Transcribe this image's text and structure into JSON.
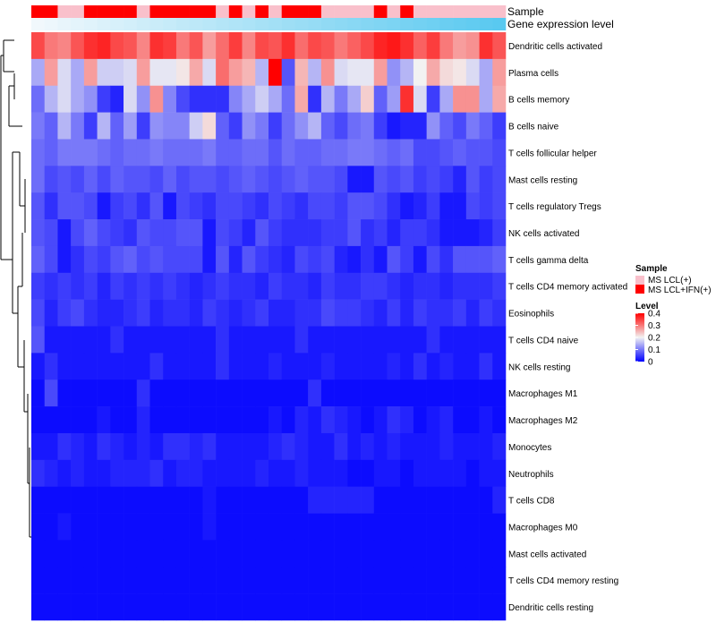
{
  "chart_data": {
    "type": "heatmap",
    "annotation_tracks": [
      {
        "name": "Sample"
      },
      {
        "name": "Gene expression level"
      }
    ],
    "sample_groups": [
      "MS LCL(+)",
      "MS LCL+IFN(+)"
    ],
    "sample_colors": {
      "MS LCL(+)": "#F9C0CB",
      "MS LCL+IFN(+)": "#FF0000"
    },
    "sample_annotation": [
      1,
      1,
      0,
      0,
      1,
      1,
      1,
      1,
      0,
      1,
      1,
      1,
      1,
      1,
      0,
      1,
      0,
      1,
      0,
      1,
      1,
      1,
      0,
      0,
      0,
      0,
      1,
      0,
      1,
      0,
      0,
      0,
      0,
      0,
      0,
      0
    ],
    "expression_gradient": [
      "#F1F8FC",
      "#59C9F0"
    ],
    "rows": [
      "Dendritic cells activated",
      "Plasma cells",
      "B cells memory",
      "B cells naive",
      "T cells follicular helper",
      "Mast cells resting",
      "T cells regulatory  Tregs",
      "NK cells activated",
      "T cells gamma delta",
      "T cells CD4 memory activated",
      "Eosinophils",
      "T cells CD4 naive",
      "NK cells resting",
      "Macrophages M1",
      "Macrophages M2",
      "Monocytes",
      "Neutrophils",
      "T cells CD8",
      "Macrophages M0",
      "Mast cells activated",
      "T cells CD4 memory resting",
      "Dendritic cells resting"
    ],
    "values": [
      [
        0.34,
        0.3,
        0.29,
        0.33,
        0.36,
        0.37,
        0.34,
        0.33,
        0.29,
        0.36,
        0.35,
        0.3,
        0.33,
        0.27,
        0.31,
        0.35,
        0.29,
        0.34,
        0.33,
        0.36,
        0.31,
        0.34,
        0.33,
        0.3,
        0.32,
        0.34,
        0.37,
        0.38,
        0.36,
        0.32,
        0.35,
        0.3,
        0.27,
        0.28,
        0.36,
        0.33
      ],
      [
        0.14,
        0.27,
        0.18,
        0.14,
        0.27,
        0.17,
        0.17,
        0.18,
        0.27,
        0.19,
        0.19,
        0.21,
        0.26,
        0.18,
        0.31,
        0.27,
        0.25,
        0.15,
        0.4,
        0.07,
        0.25,
        0.15,
        0.28,
        0.18,
        0.19,
        0.19,
        0.27,
        0.12,
        0.15,
        0.2,
        0.26,
        0.22,
        0.21,
        0.18,
        0.14,
        0.27
      ],
      [
        0.09,
        0.15,
        0.18,
        0.14,
        0.12,
        0.05,
        0.03,
        0.18,
        0.12,
        0.28,
        0.11,
        0.06,
        0.04,
        0.04,
        0.04,
        0.11,
        0.14,
        0.17,
        0.14,
        0.09,
        0.26,
        0.04,
        0.15,
        0.1,
        0.14,
        0.23,
        0.08,
        0.13,
        0.36,
        0.18,
        0.05,
        0.14,
        0.28,
        0.28,
        0.14,
        0.26
      ],
      [
        0.1,
        0.08,
        0.15,
        0.1,
        0.05,
        0.15,
        0.08,
        0.13,
        0.05,
        0.12,
        0.11,
        0.11,
        0.17,
        0.22,
        0.08,
        0.05,
        0.12,
        0.1,
        0.05,
        0.09,
        0.12,
        0.15,
        0.08,
        0.06,
        0.09,
        0.1,
        0.05,
        0.02,
        0.03,
        0.03,
        0.12,
        0.08,
        0.06,
        0.1,
        0.08,
        0.05
      ],
      [
        0.09,
        0.08,
        0.1,
        0.1,
        0.1,
        0.09,
        0.08,
        0.09,
        0.09,
        0.1,
        0.09,
        0.09,
        0.09,
        0.1,
        0.08,
        0.08,
        0.09,
        0.09,
        0.07,
        0.09,
        0.08,
        0.08,
        0.09,
        0.09,
        0.1,
        0.1,
        0.09,
        0.08,
        0.09,
        0.06,
        0.06,
        0.07,
        0.08,
        0.07,
        0.07,
        0.06
      ],
      [
        0.09,
        0.06,
        0.07,
        0.06,
        0.08,
        0.06,
        0.08,
        0.07,
        0.07,
        0.06,
        0.08,
        0.06,
        0.07,
        0.07,
        0.06,
        0.07,
        0.08,
        0.07,
        0.06,
        0.07,
        0.08,
        0.07,
        0.07,
        0.06,
        0.02,
        0.02,
        0.07,
        0.06,
        0.07,
        0.05,
        0.06,
        0.05,
        0.03,
        0.07,
        0.05,
        0.06
      ],
      [
        0.07,
        0.04,
        0.07,
        0.07,
        0.06,
        0.02,
        0.05,
        0.06,
        0.04,
        0.07,
        0.02,
        0.06,
        0.05,
        0.04,
        0.06,
        0.06,
        0.05,
        0.04,
        0.06,
        0.05,
        0.04,
        0.06,
        0.06,
        0.05,
        0.07,
        0.07,
        0.06,
        0.04,
        0.02,
        0.03,
        0.05,
        0.02,
        0.02,
        0.06,
        0.05,
        0.06
      ],
      [
        0.07,
        0.06,
        0.02,
        0.06,
        0.08,
        0.06,
        0.05,
        0.04,
        0.07,
        0.06,
        0.06,
        0.07,
        0.07,
        0.02,
        0.06,
        0.05,
        0.03,
        0.07,
        0.05,
        0.04,
        0.04,
        0.04,
        0.05,
        0.05,
        0.07,
        0.04,
        0.05,
        0.03,
        0.05,
        0.05,
        0.04,
        0.02,
        0.02,
        0.02,
        0.03,
        0.05
      ],
      [
        0.08,
        0.06,
        0.02,
        0.04,
        0.06,
        0.05,
        0.07,
        0.08,
        0.06,
        0.07,
        0.06,
        0.06,
        0.06,
        0.02,
        0.07,
        0.03,
        0.07,
        0.05,
        0.04,
        0.03,
        0.06,
        0.05,
        0.06,
        0.03,
        0.02,
        0.04,
        0.02,
        0.07,
        0.05,
        0.02,
        0.06,
        0.04,
        0.07,
        0.07,
        0.07,
        0.08
      ],
      [
        0.05,
        0.04,
        0.05,
        0.04,
        0.05,
        0.03,
        0.05,
        0.04,
        0.05,
        0.04,
        0.05,
        0.04,
        0.03,
        0.04,
        0.05,
        0.04,
        0.04,
        0.03,
        0.05,
        0.04,
        0.04,
        0.03,
        0.05,
        0.04,
        0.04,
        0.05,
        0.05,
        0.04,
        0.03,
        0.04,
        0.04,
        0.03,
        0.04,
        0.04,
        0.04,
        0.05
      ],
      [
        0.06,
        0.03,
        0.05,
        0.06,
        0.04,
        0.03,
        0.03,
        0.04,
        0.05,
        0.03,
        0.04,
        0.04,
        0.03,
        0.05,
        0.04,
        0.03,
        0.04,
        0.05,
        0.03,
        0.03,
        0.04,
        0.04,
        0.06,
        0.05,
        0.05,
        0.04,
        0.03,
        0.05,
        0.03,
        0.05,
        0.04,
        0.04,
        0.05,
        0.03,
        0.05,
        0.04
      ],
      [
        0.07,
        0.02,
        0.02,
        0.02,
        0.02,
        0.02,
        0.04,
        0.02,
        0.02,
        0.02,
        0.02,
        0.02,
        0.02,
        0.02,
        0.04,
        0.02,
        0.02,
        0.02,
        0.02,
        0.02,
        0.04,
        0.02,
        0.02,
        0.02,
        0.02,
        0.02,
        0.02,
        0.02,
        0.02,
        0.02,
        0.04,
        0.02,
        0.02,
        0.02,
        0.02,
        0.02
      ],
      [
        0.02,
        0.04,
        0.02,
        0.02,
        0.02,
        0.02,
        0.02,
        0.02,
        0.02,
        0.04,
        0.02,
        0.02,
        0.02,
        0.02,
        0.04,
        0.02,
        0.02,
        0.02,
        0.03,
        0.02,
        0.02,
        0.02,
        0.03,
        0.02,
        0.02,
        0.02,
        0.02,
        0.03,
        0.02,
        0.04,
        0.02,
        0.03,
        0.02,
        0.02,
        0.04,
        0.02
      ],
      [
        0.01,
        0.06,
        0.01,
        0.01,
        0.01,
        0.01,
        0.01,
        0.01,
        0.04,
        0.01,
        0.01,
        0.01,
        0.01,
        0.01,
        0.01,
        0.01,
        0.01,
        0.01,
        0.01,
        0.01,
        0.01,
        0.04,
        0.01,
        0.01,
        0.01,
        0.01,
        0.01,
        0.01,
        0.01,
        0.01,
        0.01,
        0.01,
        0.01,
        0.01,
        0.01,
        0.01
      ],
      [
        0.01,
        0.01,
        0.01,
        0.01,
        0.01,
        0.02,
        0.01,
        0.01,
        0.03,
        0.01,
        0.01,
        0.01,
        0.01,
        0.01,
        0.01,
        0.01,
        0.01,
        0.01,
        0.02,
        0.01,
        0.03,
        0.02,
        0.04,
        0.03,
        0.02,
        0.01,
        0.02,
        0.04,
        0.03,
        0.01,
        0.02,
        0.03,
        0.01,
        0.01,
        0.02,
        0.01
      ],
      [
        0.02,
        0.02,
        0.04,
        0.03,
        0.02,
        0.04,
        0.03,
        0.02,
        0.03,
        0.02,
        0.04,
        0.04,
        0.03,
        0.04,
        0.02,
        0.02,
        0.02,
        0.02,
        0.03,
        0.04,
        0.03,
        0.02,
        0.02,
        0.04,
        0.02,
        0.03,
        0.02,
        0.03,
        0.02,
        0.02,
        0.02,
        0.03,
        0.02,
        0.02,
        0.02,
        0.03
      ],
      [
        0.04,
        0.03,
        0.02,
        0.03,
        0.02,
        0.02,
        0.03,
        0.03,
        0.03,
        0.04,
        0.02,
        0.03,
        0.03,
        0.02,
        0.02,
        0.02,
        0.02,
        0.03,
        0.02,
        0.02,
        0.03,
        0.02,
        0.02,
        0.02,
        0.01,
        0.01,
        0.02,
        0.02,
        0.01,
        0.02,
        0.02,
        0.02,
        0.02,
        0.01,
        0.02,
        0.02
      ],
      [
        0.01,
        0.01,
        0.01,
        0.01,
        0.01,
        0.01,
        0.01,
        0.01,
        0.01,
        0.01,
        0.01,
        0.01,
        0.01,
        0.02,
        0.01,
        0.01,
        0.01,
        0.01,
        0.01,
        0.01,
        0.01,
        0.03,
        0.03,
        0.03,
        0.03,
        0.03,
        0.01,
        0.01,
        0.01,
        0.01,
        0.01,
        0.01,
        0.01,
        0.01,
        0.01,
        0.03
      ],
      [
        0.01,
        0.01,
        0.02,
        0.01,
        0.01,
        0.01,
        0.01,
        0.01,
        0.01,
        0.01,
        0.01,
        0.01,
        0.01,
        0.02,
        0.01,
        0.01,
        0.01,
        0.01,
        0.01,
        0.01,
        0.01,
        0.01,
        0.01,
        0.01,
        0.01,
        0.01,
        0.01,
        0.01,
        0.01,
        0.01,
        0.01,
        0.01,
        0.01,
        0.01,
        0.01,
        0.01
      ],
      [
        0.01,
        0.01,
        0.01,
        0.01,
        0.01,
        0.01,
        0.01,
        0.01,
        0.01,
        0.01,
        0.01,
        0.01,
        0.01,
        0.01,
        0.01,
        0.01,
        0.01,
        0.01,
        0.01,
        0.01,
        0.01,
        0.01,
        0.01,
        0.01,
        0.01,
        0.01,
        0.01,
        0.01,
        0.01,
        0.01,
        0.01,
        0.01,
        0.01,
        0.01,
        0.01,
        0.01
      ],
      [
        0.01,
        0.01,
        0.01,
        0.01,
        0.01,
        0.01,
        0.01,
        0.01,
        0.01,
        0.01,
        0.01,
        0.01,
        0.01,
        0.01,
        0.01,
        0.01,
        0.01,
        0.01,
        0.01,
        0.01,
        0.01,
        0.01,
        0.01,
        0.01,
        0.01,
        0.01,
        0.01,
        0.01,
        0.01,
        0.01,
        0.01,
        0.01,
        0.01,
        0.01,
        0.01,
        0.01
      ],
      [
        0.01,
        0.01,
        0.01,
        0.01,
        0.01,
        0.01,
        0.01,
        0.01,
        0.01,
        0.01,
        0.01,
        0.01,
        0.01,
        0.01,
        0.01,
        0.01,
        0.01,
        0.01,
        0.01,
        0.01,
        0.01,
        0.01,
        0.01,
        0.01,
        0.01,
        0.01,
        0.01,
        0.01,
        0.01,
        0.01,
        0.01,
        0.01,
        0.01,
        0.01,
        0.01,
        0.01
      ]
    ],
    "legend": {
      "sample_title": "Sample",
      "level_title": "Level",
      "level_ticks": [
        0.4,
        0.3,
        0.2,
        0.1,
        0
      ],
      "level_tick_labels": [
        "0.4",
        "0.3",
        "0.2",
        "0.1",
        "0"
      ],
      "level_range": [
        0,
        0.4
      ]
    },
    "colorscale": {
      "low": "#0000FF",
      "mid": "#F2F2F2",
      "high": "#FF0000"
    }
  }
}
